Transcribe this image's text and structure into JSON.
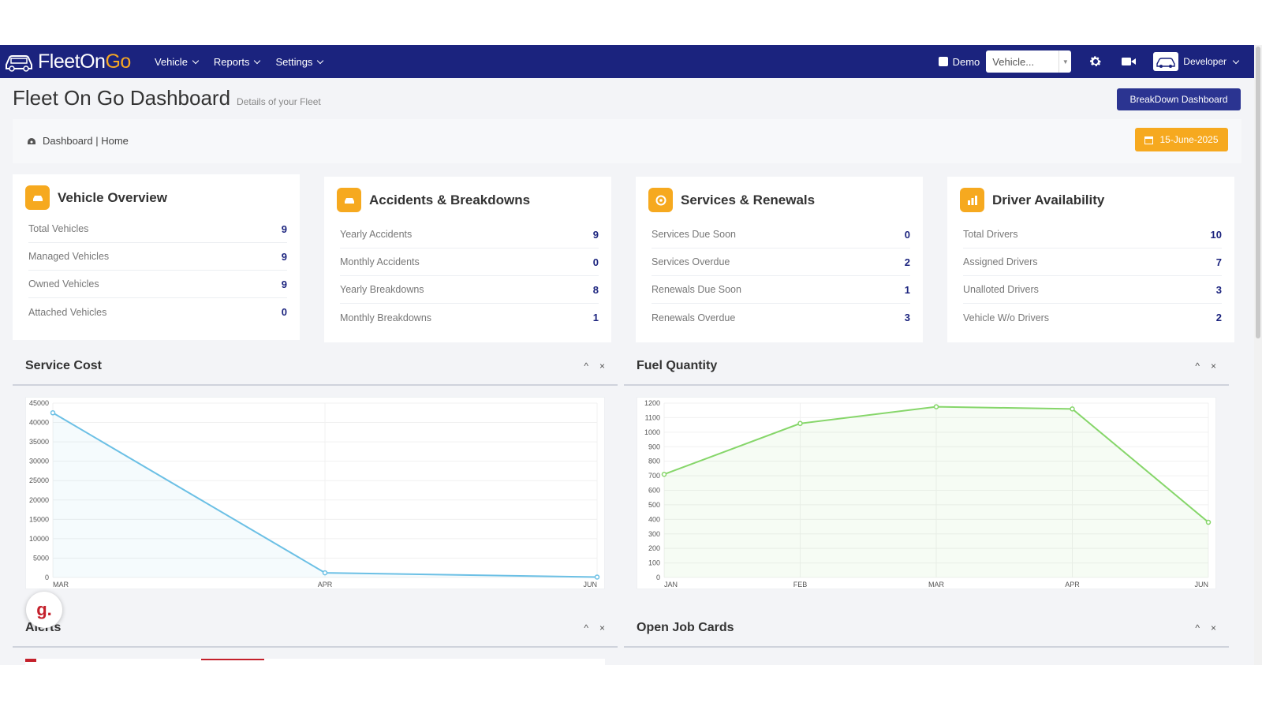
{
  "app": {
    "name_part1": "FleetOn",
    "name_part2": "Go"
  },
  "nav": {
    "menu": [
      "Vehicle",
      "Reports",
      "Settings"
    ],
    "demo_label": "Demo",
    "vehicle_select": "Vehicle...",
    "user": "Developer"
  },
  "header": {
    "title": "Fleet On Go Dashboard",
    "subtitle": "Details of your Fleet",
    "breakdown_button": "BreakDown Dashboard",
    "breadcrumb": "Dashboard | Home",
    "date": "15-June-2025"
  },
  "cards": [
    {
      "title": "Vehicle Overview",
      "icon": "car-icon",
      "rows": [
        {
          "label": "Total Vehicles",
          "value": "9"
        },
        {
          "label": "Managed Vehicles",
          "value": "9"
        },
        {
          "label": "Owned Vehicles",
          "value": "9"
        },
        {
          "label": "Attached Vehicles",
          "value": "0"
        }
      ]
    },
    {
      "title": "Accidents & Breakdowns",
      "icon": "car-crash-icon",
      "rows": [
        {
          "label": "Yearly Accidents",
          "value": "9"
        },
        {
          "label": "Monthly Accidents",
          "value": "0"
        },
        {
          "label": "Yearly Breakdowns",
          "value": "8"
        },
        {
          "label": "Monthly Breakdowns",
          "value": "1"
        }
      ]
    },
    {
      "title": "Services & Renewals",
      "icon": "gauge-icon",
      "rows": [
        {
          "label": "Services Due Soon",
          "value": "0"
        },
        {
          "label": "Services Overdue",
          "value": "2"
        },
        {
          "label": "Renewals Due Soon",
          "value": "1"
        },
        {
          "label": "Renewals Overdue",
          "value": "3"
        }
      ]
    },
    {
      "title": "Driver Availability",
      "icon": "chart-icon",
      "rows": [
        {
          "label": "Total Drivers",
          "value": "10"
        },
        {
          "label": "Assigned Drivers",
          "value": "7"
        },
        {
          "label": "Unalloted Drivers",
          "value": "3"
        },
        {
          "label": "Vehicle W/o Drivers",
          "value": "2"
        }
      ]
    }
  ],
  "panels": {
    "service_cost": "Service Cost",
    "fuel_quantity": "Fuel Quantity",
    "alerts": "Alerts",
    "open_job_cards": "Open Job Cards",
    "collapse_glyph": "^",
    "close_glyph": "×"
  },
  "fab_label": "g.",
  "colors": {
    "nav": "#1b237e",
    "accent": "#f6a91f",
    "service_line": "#6cc0e5",
    "fuel_line": "#86d66a"
  },
  "chart_data": [
    {
      "type": "line",
      "title": "Service Cost",
      "categories": [
        "MAR",
        "APR",
        "JUN"
      ],
      "values": [
        42500,
        1200,
        100
      ],
      "ylim": [
        0,
        45000
      ],
      "yticks": [
        0,
        5000,
        10000,
        15000,
        20000,
        25000,
        30000,
        35000,
        40000,
        45000
      ],
      "grid": true
    },
    {
      "type": "line",
      "title": "Fuel Quantity",
      "categories": [
        "JAN",
        "FEB",
        "MAR",
        "APR",
        "JUN"
      ],
      "values": [
        710,
        1060,
        1175,
        1160,
        380
      ],
      "ylim": [
        0,
        1200
      ],
      "yticks": [
        0,
        100,
        200,
        300,
        400,
        500,
        600,
        700,
        800,
        900,
        1000,
        1100,
        1200
      ],
      "grid": true
    }
  ]
}
